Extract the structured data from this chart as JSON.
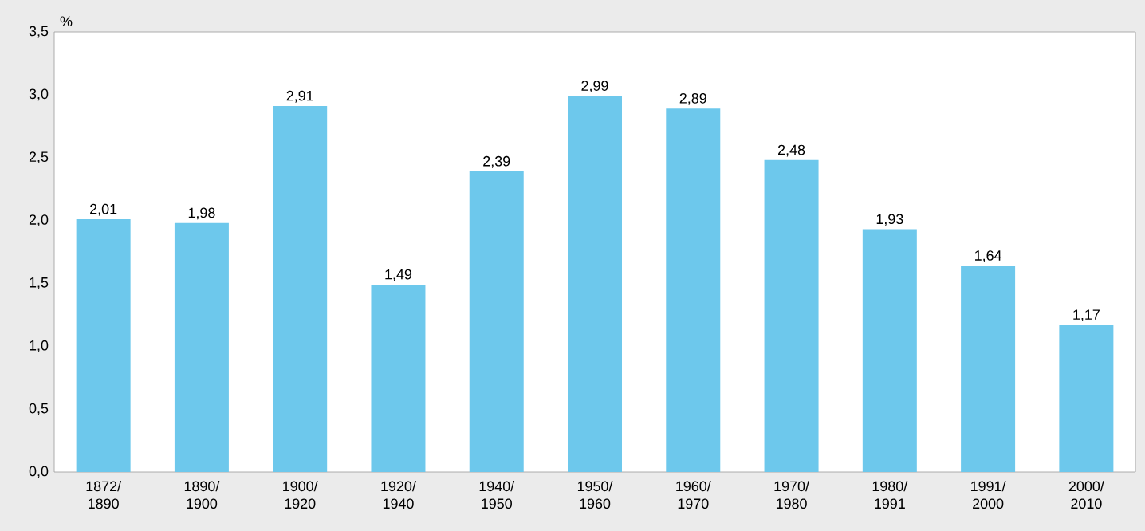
{
  "chart_data": {
    "type": "bar",
    "ylabel": "%",
    "categories": [
      "1872/ 1890",
      "1890/ 1900",
      "1900/ 1920",
      "1920/ 1940",
      "1940/ 1950",
      "1950/ 1960",
      "1960/ 1970",
      "1970/ 1980",
      "1980/ 1991",
      "1991/ 2000",
      "2000/ 2010"
    ],
    "values": [
      2.01,
      1.98,
      2.91,
      1.49,
      2.39,
      2.99,
      2.89,
      2.48,
      1.93,
      1.64,
      1.17
    ],
    "value_labels": [
      "2,01",
      "1,98",
      "2,91",
      "1,49",
      "2,39",
      "2,99",
      "2,89",
      "2,48",
      "1,93",
      "1,64",
      "1,17"
    ],
    "color": "#6dc8ec",
    "ylim": [
      0,
      3.5
    ],
    "yticks": [
      {
        "value": 0,
        "label": "0,0"
      },
      {
        "value": 0.5,
        "label": "0,5"
      },
      {
        "value": 1,
        "label": "1,0"
      },
      {
        "value": 1.5,
        "label": "1,5"
      },
      {
        "value": 2,
        "label": "2,0"
      },
      {
        "value": 2.5,
        "label": "2,5"
      },
      {
        "value": 3,
        "label": "3,0"
      },
      {
        "value": 3.5,
        "label": "3,5"
      }
    ],
    "grid": false
  }
}
